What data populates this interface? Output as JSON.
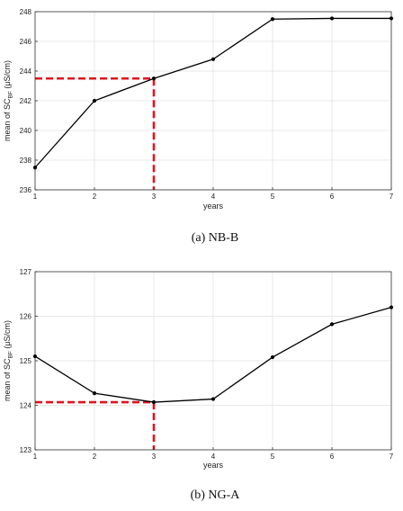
{
  "chart_data": [
    {
      "type": "line",
      "caption": "(a)  NB-B",
      "xlabel": "years",
      "ylabel": "mean of SC",
      "ylabel_sub": "BF",
      "ylabel_unit": " (μS/cm)",
      "x": [
        1,
        2,
        3,
        4,
        5,
        6,
        7
      ],
      "series": [
        {
          "values": [
            237.5,
            242.0,
            243.5,
            244.8,
            247.5,
            247.55,
            247.55
          ]
        }
      ],
      "xlim": [
        1,
        7
      ],
      "ylim": [
        236,
        248
      ],
      "yticks": [
        236,
        238,
        240,
        242,
        244,
        246,
        248
      ],
      "grid": true,
      "marker_line": {
        "x": 3,
        "y": 243.5,
        "color": "#e0141e"
      }
    },
    {
      "type": "line",
      "caption": "(b)  NG-A",
      "xlabel": "years",
      "ylabel": "mean of SC",
      "ylabel_sub": "BF",
      "ylabel_unit": " (μS/cm)",
      "x": [
        1,
        2,
        3,
        4,
        5,
        6,
        7
      ],
      "series": [
        {
          "values": [
            125.1,
            124.27,
            124.07,
            124.14,
            125.08,
            125.82,
            126.2
          ]
        }
      ],
      "xlim": [
        1,
        7
      ],
      "ylim": [
        123,
        127
      ],
      "yticks": [
        123,
        124,
        125,
        126,
        127
      ],
      "grid": true,
      "marker_line": {
        "x": 3,
        "y": 124.07,
        "color": "#e0141e"
      }
    }
  ]
}
